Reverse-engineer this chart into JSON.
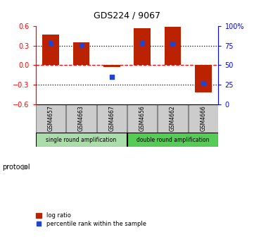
{
  "title": "GDS224 / 9067",
  "samples": [
    "GSM4657",
    "GSM4663",
    "GSM4667",
    "GSM4656",
    "GSM4662",
    "GSM4666"
  ],
  "log_ratios": [
    0.47,
    0.35,
    -0.03,
    0.57,
    0.59,
    -0.42
  ],
  "percentile_ranks": [
    0.78,
    0.76,
    0.35,
    0.78,
    0.77,
    0.27
  ],
  "bar_color": "#bb2200",
  "dot_color": "#2244cc",
  "ylim_left": [
    -0.6,
    0.6
  ],
  "ylim_right": [
    0,
    100
  ],
  "yticks_left": [
    -0.6,
    -0.3,
    0.0,
    0.3,
    0.6
  ],
  "yticks_right": [
    0,
    25,
    50,
    75,
    100
  ],
  "hlines": [
    0.3,
    0.0,
    -0.3
  ],
  "hline_styles": [
    "dotted",
    "dashed",
    "dotted"
  ],
  "hline_colors": [
    "black",
    "red",
    "black"
  ],
  "group1_label": "single round amplification",
  "group1_color": "#aaddaa",
  "group1_indices": [
    0,
    1,
    2
  ],
  "group2_label": "double round amplification",
  "group2_color": "#55cc55",
  "group2_indices": [
    3,
    4,
    5
  ],
  "protocol_label": "protocol",
  "legend_log_ratio": "log ratio",
  "legend_percentile": "percentile rank within the sample",
  "bg_color": "#ffffff",
  "sample_box_color": "#cccccc",
  "sample_box_edge": "#888888"
}
